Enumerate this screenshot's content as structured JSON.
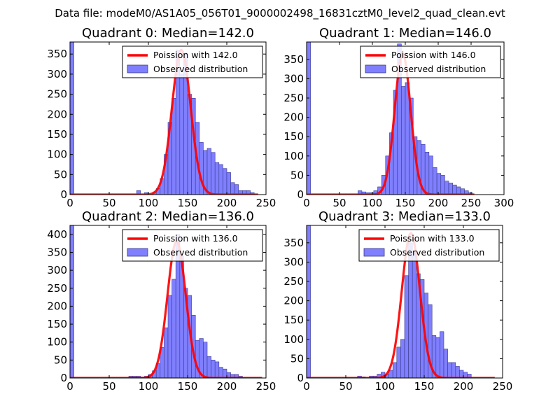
{
  "figure": {
    "suptitle": "Data file: modeM0/AS1A05_056T01_9000002498_16831cztM0_level2_quad_clean.evt"
  },
  "colors": {
    "bar_fill": "#7f7fff",
    "bar_edge": "#3a3a8a",
    "line": "#ff0000",
    "axis": "#000000",
    "background": "#ffffff"
  },
  "chart_data": [
    {
      "type": "bar",
      "title": "Quadrant 0: Median=142.0",
      "xlim": [
        0,
        250
      ],
      "ylim": [
        0,
        380
      ],
      "xticks": [
        0,
        50,
        100,
        150,
        200,
        250
      ],
      "yticks": [
        0,
        50,
        100,
        150,
        200,
        250,
        300,
        350
      ],
      "bin_width": 5,
      "legend_position": "top-right",
      "legend": {
        "line_label": "Poission with 142.0",
        "bar_label": "Observed distribution"
      },
      "bins": [
        [
          0,
          380
        ],
        [
          85,
          10
        ],
        [
          95,
          5
        ],
        [
          105,
          5
        ],
        [
          110,
          15
        ],
        [
          115,
          40
        ],
        [
          120,
          100
        ],
        [
          125,
          180
        ],
        [
          130,
          240
        ],
        [
          135,
          360
        ],
        [
          140,
          300
        ],
        [
          145,
          350
        ],
        [
          150,
          250
        ],
        [
          155,
          240
        ],
        [
          160,
          180
        ],
        [
          165,
          130
        ],
        [
          170,
          110
        ],
        [
          175,
          115
        ],
        [
          180,
          105
        ],
        [
          185,
          80
        ],
        [
          190,
          75
        ],
        [
          195,
          65
        ],
        [
          200,
          55
        ],
        [
          205,
          30
        ],
        [
          210,
          25
        ],
        [
          215,
          10
        ],
        [
          220,
          10
        ],
        [
          225,
          10
        ],
        [
          230,
          5
        ]
      ],
      "poisson": {
        "mean": 142.0,
        "peak": 360,
        "x_range": [
          0,
          240
        ]
      }
    },
    {
      "type": "bar",
      "title": "Quadrant 1: Median=146.0",
      "xlim": [
        0,
        300
      ],
      "ylim": [
        0,
        395
      ],
      "xticks": [
        0,
        50,
        100,
        150,
        200,
        250,
        300
      ],
      "yticks": [
        0,
        50,
        100,
        150,
        200,
        250,
        300,
        350
      ],
      "bin_width": 6,
      "legend_position": "top-right",
      "legend": {
        "line_label": "Poission with 146.0",
        "bar_label": "Observed distribution"
      },
      "bins": [
        [
          0,
          395
        ],
        [
          78,
          10
        ],
        [
          84,
          7
        ],
        [
          90,
          5
        ],
        [
          96,
          5
        ],
        [
          102,
          10
        ],
        [
          108,
          20
        ],
        [
          114,
          50
        ],
        [
          120,
          100
        ],
        [
          126,
          160
        ],
        [
          132,
          270
        ],
        [
          138,
          390
        ],
        [
          144,
          280
        ],
        [
          150,
          290
        ],
        [
          156,
          250
        ],
        [
          162,
          150
        ],
        [
          168,
          140
        ],
        [
          174,
          130
        ],
        [
          180,
          110
        ],
        [
          186,
          100
        ],
        [
          192,
          70
        ],
        [
          198,
          55
        ],
        [
          204,
          50
        ],
        [
          210,
          35
        ],
        [
          216,
          30
        ],
        [
          222,
          25
        ],
        [
          228,
          20
        ],
        [
          234,
          15
        ],
        [
          240,
          10
        ],
        [
          246,
          5
        ]
      ],
      "poisson": {
        "mean": 146.0,
        "peak": 365,
        "x_range": [
          0,
          255
        ]
      }
    },
    {
      "type": "bar",
      "title": "Quadrant 2: Median=136.0",
      "xlim": [
        0,
        250
      ],
      "ylim": [
        0,
        425
      ],
      "xticks": [
        0,
        50,
        100,
        150,
        200,
        250
      ],
      "yticks": [
        0,
        50,
        100,
        150,
        200,
        250,
        300,
        350,
        400
      ],
      "bin_width": 5,
      "legend_position": "top-right",
      "legend": {
        "line_label": "Poission with 136.0",
        "bar_label": "Observed distribution"
      },
      "bins": [
        [
          0,
          425
        ],
        [
          75,
          5
        ],
        [
          80,
          5
        ],
        [
          85,
          5
        ],
        [
          90,
          3
        ],
        [
          95,
          5
        ],
        [
          100,
          10
        ],
        [
          105,
          20
        ],
        [
          110,
          40
        ],
        [
          115,
          85
        ],
        [
          120,
          140
        ],
        [
          125,
          230
        ],
        [
          130,
          275
        ],
        [
          135,
          400
        ],
        [
          140,
          340
        ],
        [
          145,
          250
        ],
        [
          150,
          230
        ],
        [
          155,
          175
        ],
        [
          160,
          105
        ],
        [
          165,
          110
        ],
        [
          170,
          100
        ],
        [
          175,
          60
        ],
        [
          180,
          50
        ],
        [
          185,
          45
        ],
        [
          190,
          30
        ],
        [
          195,
          25
        ],
        [
          200,
          15
        ],
        [
          205,
          10
        ],
        [
          210,
          10
        ],
        [
          215,
          5
        ]
      ],
      "poisson": {
        "mean": 136.0,
        "peak": 380,
        "x_range": [
          0,
          245
        ]
      }
    },
    {
      "type": "bar",
      "title": "Quadrant 3: Median=133.0",
      "xlim": [
        0,
        250
      ],
      "ylim": [
        0,
        395
      ],
      "xticks": [
        0,
        50,
        100,
        150,
        200,
        250
      ],
      "yticks": [
        0,
        50,
        100,
        150,
        200,
        250,
        300,
        350
      ],
      "bin_width": 5,
      "legend_position": "top-right",
      "legend": {
        "line_label": "Poission with 133.0",
        "bar_label": "Observed distribution"
      },
      "bins": [
        [
          0,
          395
        ],
        [
          65,
          5
        ],
        [
          70,
          3
        ],
        [
          80,
          5
        ],
        [
          85,
          5
        ],
        [
          90,
          10
        ],
        [
          95,
          15
        ],
        [
          100,
          10
        ],
        [
          105,
          20
        ],
        [
          110,
          40
        ],
        [
          115,
          80
        ],
        [
          120,
          100
        ],
        [
          125,
          265
        ],
        [
          130,
          350
        ],
        [
          135,
          325
        ],
        [
          140,
          270
        ],
        [
          145,
          255
        ],
        [
          150,
          220
        ],
        [
          155,
          190
        ],
        [
          160,
          110
        ],
        [
          165,
          105
        ],
        [
          170,
          120
        ],
        [
          175,
          75
        ],
        [
          180,
          40
        ],
        [
          185,
          40
        ],
        [
          190,
          30
        ],
        [
          195,
          20
        ],
        [
          200,
          15
        ],
        [
          205,
          10
        ]
      ],
      "poisson": {
        "mean": 133.0,
        "peak": 375,
        "x_range": [
          0,
          240
        ]
      }
    }
  ]
}
